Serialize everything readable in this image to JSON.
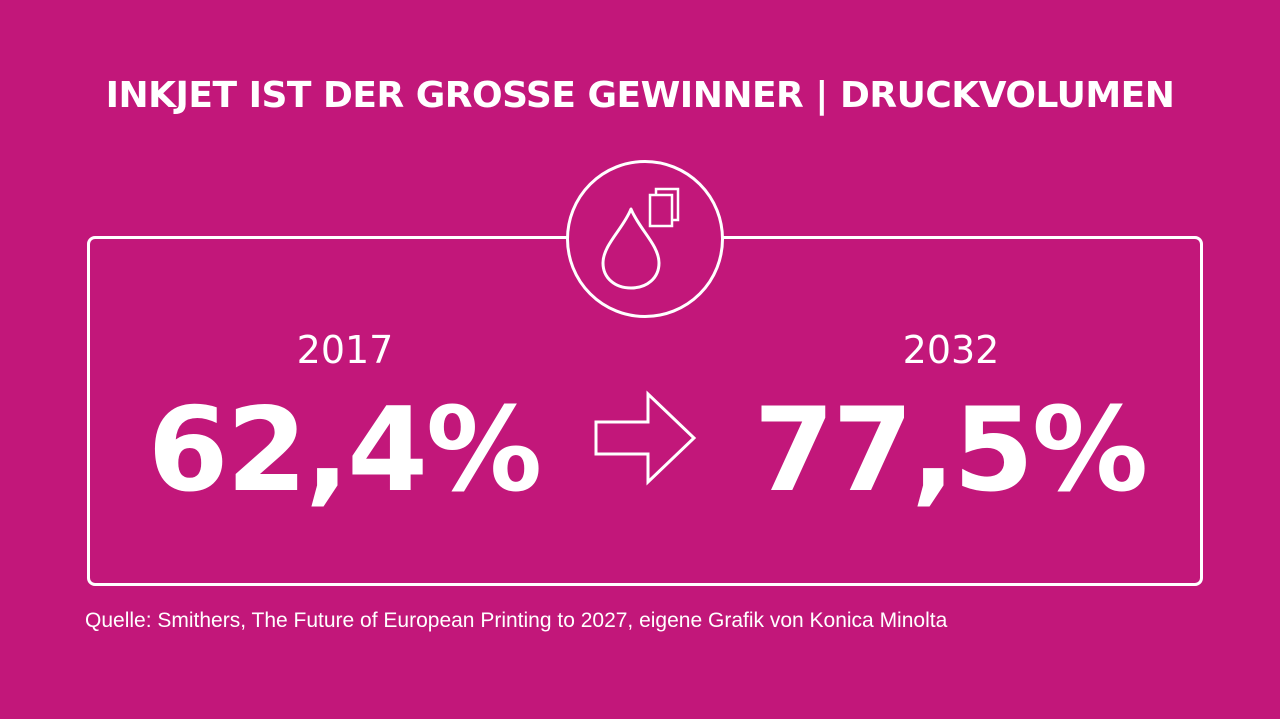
{
  "header": {
    "title": "INKJET IST DER GROSSE GEWINNER | DRUCKVOLUMEN"
  },
  "comparison": {
    "from": {
      "year": "2017",
      "value": "62,4%"
    },
    "to": {
      "year": "2032",
      "value": "77,5%"
    }
  },
  "icons": {
    "main_icon": "ink-drop-and-pages-icon",
    "transition_icon": "arrow-right-icon"
  },
  "footer": {
    "source": "Quelle: Smithers, The Future of European Printing to 2027, eigene Grafik von Konica Minolta"
  },
  "colors": {
    "background": "#c2177a",
    "foreground": "#ffffff"
  }
}
